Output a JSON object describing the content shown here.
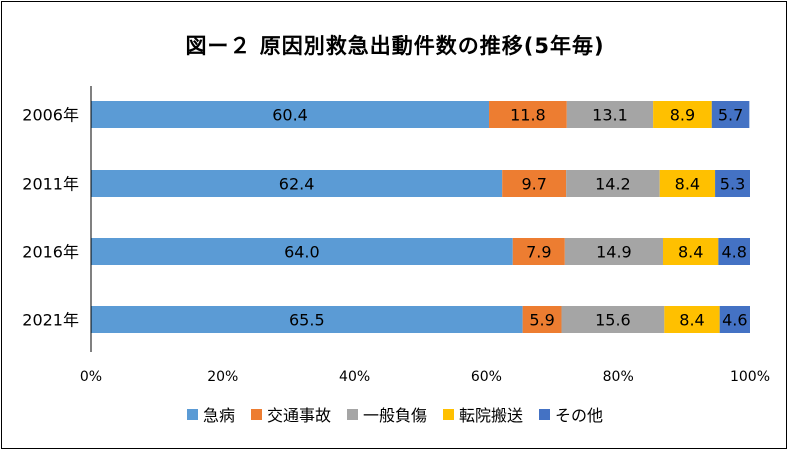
{
  "chart_data": {
    "type": "bar",
    "orientation": "horizontal",
    "stacked": true,
    "title": "図ー２ 原因別救急出動件数の推移(5年毎)",
    "categories": [
      "2006年",
      "2011年",
      "2016年",
      "2021年"
    ],
    "xlim": [
      0,
      100
    ],
    "xticks": [
      "0%",
      "20%",
      "40%",
      "60%",
      "80%",
      "100%"
    ],
    "grid": false,
    "legend_position": "bottom",
    "series": [
      {
        "name": "急病",
        "color": "#5b9bd5",
        "values": [
          60.4,
          62.4,
          64.0,
          65.5
        ],
        "labels": [
          "60.4",
          "62.4",
          "64.0",
          "65.5"
        ]
      },
      {
        "name": "交通事故",
        "color": "#ed7d31",
        "values": [
          11.8,
          9.7,
          7.9,
          5.9
        ],
        "labels": [
          "11.8",
          "9.7",
          "7.9",
          "5.9"
        ]
      },
      {
        "name": "一般負傷",
        "color": "#a5a5a5",
        "values": [
          13.1,
          14.2,
          14.9,
          15.6
        ],
        "labels": [
          "13.1",
          "14.2",
          "14.9",
          "15.6"
        ]
      },
      {
        "name": "転院搬送",
        "color": "#ffc000",
        "values": [
          8.9,
          8.4,
          8.4,
          8.4
        ],
        "labels": [
          "8.9",
          "8.4",
          "8.4",
          "8.4"
        ]
      },
      {
        "name": "その他",
        "color": "#4472c4",
        "values": [
          5.7,
          5.3,
          4.8,
          4.6
        ],
        "labels": [
          "5.7",
          "5.3",
          "4.8",
          "4.6"
        ]
      }
    ]
  }
}
